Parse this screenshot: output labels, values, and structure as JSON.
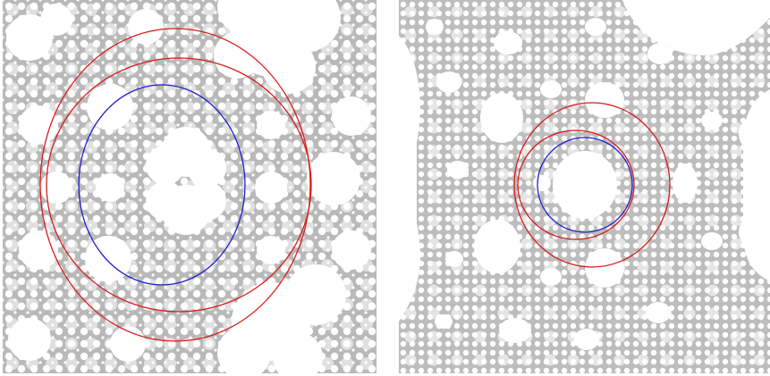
{
  "figure": {
    "description_panels": [
      "left",
      "right"
    ],
    "colors": {
      "limit_set": "#b4b4b4",
      "limit_set_line": "#999999",
      "background": "#ffffff",
      "circle_red": "#d81b1b",
      "circle_blue": "#1f1fd0"
    },
    "left_panel": {
      "circles": [
        "red",
        "red",
        "blue"
      ]
    },
    "right_panel": {
      "circles": [
        "red",
        "red",
        "blue"
      ]
    }
  }
}
